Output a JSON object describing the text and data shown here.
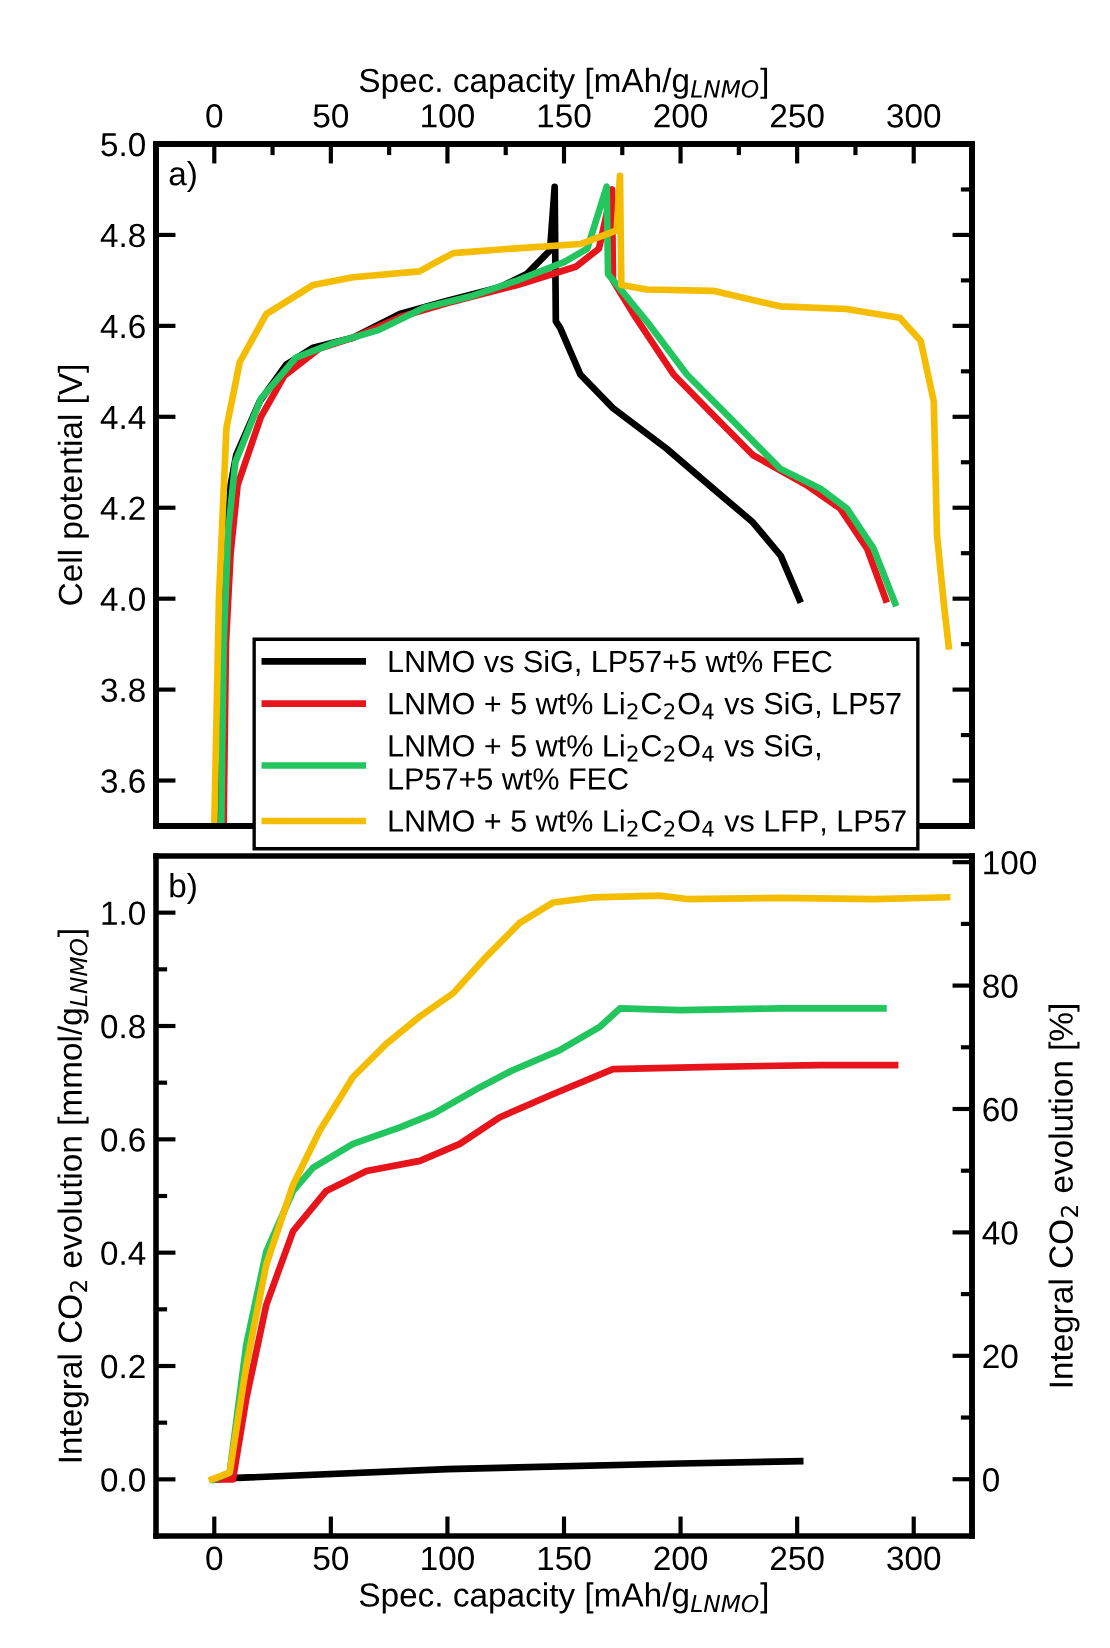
{
  "chart_data": [
    {
      "type": "line",
      "x2label": "Spec. capacity [mAh/g$_{LNMO}$]",
      "ylabel": "Cell potential [V]",
      "annotations": [
        "a)"
      ],
      "xlim": [
        -25,
        325
      ],
      "x2lim": [
        -25,
        325
      ],
      "x2ticks": [
        0,
        50,
        100,
        150,
        200,
        250,
        300
      ],
      "ylim": [
        3.5,
        5.0
      ],
      "yticks": [
        3.6,
        3.8,
        {
          "value": 4,
          "label": "4.0"
        },
        4.2,
        4.4,
        4.6,
        4.8,
        {
          "value": 5,
          "label": "5.0"
        }
      ],
      "tick_labels": "y",
      "legend": "bottom",
      "grid": false,
      "marker": "none",
      "line_style": "solid",
      "series": [
        {
          "name": "LNMO vs SiG, LP57+5 wt% FEC",
          "color": "#000000",
          "x": [
            2.4,
            3,
            5,
            7,
            9.4,
            19.5,
            30.9,
            42.4,
            59.5,
            79.6,
            99.6,
            122.5,
            134,
            144,
            146,
            146.5,
            148.3,
            157,
            171,
            194,
            214,
            231,
            243,
            251
          ],
          "values": [
            3.5,
            3.8,
            4.1,
            4.25,
            4.316,
            4.434,
            4.515,
            4.552,
            4.574,
            4.626,
            4.655,
            4.685,
            4.714,
            4.766,
            4.906,
            4.61,
            4.596,
            4.493,
            4.419,
            4.33,
            4.242,
            4.168,
            4.094,
            3.998
          ]
        },
        {
          "name": "LNMO + 5 wt% Li$_{2}$C$_{2}$O$_{4}$ vs SiG, LP57",
          "color": "#e8141c",
          "x": [
            4,
            5,
            7,
            10,
            20,
            30,
            45,
            60,
            80,
            100,
            130,
            155,
            165,
            170.6,
            171,
            179.8,
            197,
            214,
            231,
            254,
            268.5,
            280,
            288
          ],
          "values": [
            3.5,
            3.9,
            4.1,
            4.25,
            4.4,
            4.49,
            4.55,
            4.575,
            4.62,
            4.65,
            4.69,
            4.73,
            4.77,
            4.9,
            4.7,
            4.626,
            4.493,
            4.404,
            4.316,
            4.25,
            4.198,
            4.11,
            3.998
          ]
        },
        {
          "name": "LNMO + 5 wt% Li$_{2}$C$_{2}$O$_{4}$ vs SiG,\nLP57+5 wt% FEC",
          "color": "#22c55e",
          "x": [
            3,
            4,
            6,
            9,
            20,
            35,
            50,
            70,
            90,
            110,
            130,
            150,
            160,
            168.3,
            168.9,
            185.5,
            202.7,
            222.7,
            242.7,
            260,
            271.4,
            282.8,
            292
          ],
          "values": [
            3.5,
            3.9,
            4.15,
            4.3,
            4.44,
            4.53,
            4.56,
            4.59,
            4.64,
            4.665,
            4.7,
            4.74,
            4.77,
            4.906,
            4.714,
            4.61,
            4.493,
            4.39,
            4.286,
            4.242,
            4.198,
            4.11,
            3.99
          ]
        },
        {
          "name": "LNMO + 5 wt% Li$_{2}$C$_{2}$O$_{4}$ vs LFP, LP57",
          "color": "#f5bd02",
          "x": [
            0,
            2,
            5.2,
            10.9,
            22.3,
            42.4,
            59.5,
            88,
            94,
            102.5,
            128,
            157,
            172.6,
            174,
            174.6,
            185.5,
            214,
            242.7,
            271,
            294,
            303,
            308.6,
            310,
            312.9,
            315
          ],
          "values": [
            3.5,
            4.0,
            4.375,
            4.52,
            4.626,
            4.69,
            4.707,
            4.72,
            4.737,
            4.76,
            4.77,
            4.78,
            4.81,
            4.93,
            4.69,
            4.68,
            4.677,
            4.643,
            4.637,
            4.618,
            4.567,
            4.434,
            4.139,
            3.99,
            3.895
          ]
        }
      ]
    },
    {
      "type": "line",
      "xlabel": "Spec. capacity [mAh/g$_{LNMO}$]",
      "ylabel": "Integral CO$_{2}$ evolution [mmol/g$_{LNMO}$]",
      "y2label": "Integral CO$_{2}$ evolution [%]",
      "annotations": [
        "b)"
      ],
      "xlim": [
        -25,
        325
      ],
      "xticks": [
        0,
        50,
        100,
        150,
        200,
        250,
        300
      ],
      "ylim": [
        -0.1,
        1.1
      ],
      "yticks": [
        {
          "value": 0,
          "label": "0.0"
        },
        0.2,
        0.4,
        0.6,
        0.8,
        {
          "value": 1,
          "label": "1.0"
        }
      ],
      "y2lim": [
        -9.2,
        101
      ],
      "y2ticks": [
        0,
        20,
        40,
        60,
        80,
        100
      ],
      "grid": false,
      "legend": false,
      "marker": "none",
      "line_style": "solid",
      "series": [
        {
          "color": "#000000",
          "x": [
            0,
            7,
            100,
            200,
            251.3
          ],
          "values": [
            0,
            0.002,
            0.018,
            0.028,
            0.032
          ]
        },
        {
          "color": "#e8141c",
          "x": [
            0,
            5,
            8,
            13.7,
            22.3,
            33.8,
            48,
            65.3,
            88.2,
            105.3,
            122.5,
            145.4,
            171,
            214,
            260,
            292
          ],
          "values": [
            0,
            0,
            0,
            0.142,
            0.308,
            0.438,
            0.509,
            0.544,
            0.562,
            0.592,
            0.639,
            0.68,
            0.724,
            0.728,
            0.731,
            0.731
          ]
        },
        {
          "color": "#22c55e",
          "x": [
            0,
            6.6,
            13.7,
            22.3,
            33.8,
            42.4,
            59.5,
            79.6,
            93.9,
            114,
            128,
            148,
            165.5,
            174,
            200,
            242.7,
            287
          ],
          "values": [
            0,
            0.012,
            0.237,
            0.402,
            0.509,
            0.55,
            0.592,
            0.621,
            0.645,
            0.692,
            0.722,
            0.757,
            0.799,
            0.831,
            0.828,
            0.831,
            0.831
          ]
        },
        {
          "color": "#f5bd02",
          "x": [
            -1,
            6.6,
            13.7,
            22.3,
            33.8,
            45.2,
            59.5,
            73.9,
            88.2,
            102.5,
            116.8,
            131,
            145.4,
            162.6,
            191,
            202.7,
            242.7,
            282.8,
            314.3
          ],
          "values": [
            0,
            0.012,
            0.2,
            0.379,
            0.52,
            0.615,
            0.71,
            0.769,
            0.817,
            0.858,
            0.923,
            0.982,
            1.018,
            1.027,
            1.03,
            1.024,
            1.026,
            1.024,
            1.027
          ]
        }
      ]
    }
  ]
}
